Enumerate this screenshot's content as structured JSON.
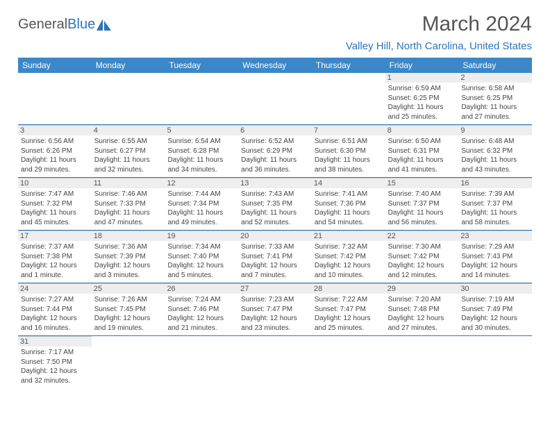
{
  "logo": {
    "part1": "General",
    "part2": "Blue"
  },
  "title": "March 2024",
  "location": "Valley Hill, North Carolina, United States",
  "colors": {
    "header_bg": "#3b87c8",
    "accent": "#2d74b8",
    "text": "#555555",
    "cell_border": "#cccccc",
    "daynum_bg": "#eeeeee"
  },
  "days_of_week": [
    "Sunday",
    "Monday",
    "Tuesday",
    "Wednesday",
    "Thursday",
    "Friday",
    "Saturday"
  ],
  "weeks": [
    [
      null,
      null,
      null,
      null,
      null,
      {
        "n": "1",
        "sr": "6:59 AM",
        "ss": "6:25 PM",
        "dl": "11 hours and 25 minutes."
      },
      {
        "n": "2",
        "sr": "6:58 AM",
        "ss": "6:25 PM",
        "dl": "11 hours and 27 minutes."
      }
    ],
    [
      {
        "n": "3",
        "sr": "6:56 AM",
        "ss": "6:26 PM",
        "dl": "11 hours and 29 minutes."
      },
      {
        "n": "4",
        "sr": "6:55 AM",
        "ss": "6:27 PM",
        "dl": "11 hours and 32 minutes."
      },
      {
        "n": "5",
        "sr": "6:54 AM",
        "ss": "6:28 PM",
        "dl": "11 hours and 34 minutes."
      },
      {
        "n": "6",
        "sr": "6:52 AM",
        "ss": "6:29 PM",
        "dl": "11 hours and 36 minutes."
      },
      {
        "n": "7",
        "sr": "6:51 AM",
        "ss": "6:30 PM",
        "dl": "11 hours and 38 minutes."
      },
      {
        "n": "8",
        "sr": "6:50 AM",
        "ss": "6:31 PM",
        "dl": "11 hours and 41 minutes."
      },
      {
        "n": "9",
        "sr": "6:48 AM",
        "ss": "6:32 PM",
        "dl": "11 hours and 43 minutes."
      }
    ],
    [
      {
        "n": "10",
        "sr": "7:47 AM",
        "ss": "7:32 PM",
        "dl": "11 hours and 45 minutes."
      },
      {
        "n": "11",
        "sr": "7:46 AM",
        "ss": "7:33 PM",
        "dl": "11 hours and 47 minutes."
      },
      {
        "n": "12",
        "sr": "7:44 AM",
        "ss": "7:34 PM",
        "dl": "11 hours and 49 minutes."
      },
      {
        "n": "13",
        "sr": "7:43 AM",
        "ss": "7:35 PM",
        "dl": "11 hours and 52 minutes."
      },
      {
        "n": "14",
        "sr": "7:41 AM",
        "ss": "7:36 PM",
        "dl": "11 hours and 54 minutes."
      },
      {
        "n": "15",
        "sr": "7:40 AM",
        "ss": "7:37 PM",
        "dl": "11 hours and 56 minutes."
      },
      {
        "n": "16",
        "sr": "7:39 AM",
        "ss": "7:37 PM",
        "dl": "11 hours and 58 minutes."
      }
    ],
    [
      {
        "n": "17",
        "sr": "7:37 AM",
        "ss": "7:38 PM",
        "dl": "12 hours and 1 minute."
      },
      {
        "n": "18",
        "sr": "7:36 AM",
        "ss": "7:39 PM",
        "dl": "12 hours and 3 minutes."
      },
      {
        "n": "19",
        "sr": "7:34 AM",
        "ss": "7:40 PM",
        "dl": "12 hours and 5 minutes."
      },
      {
        "n": "20",
        "sr": "7:33 AM",
        "ss": "7:41 PM",
        "dl": "12 hours and 7 minutes."
      },
      {
        "n": "21",
        "sr": "7:32 AM",
        "ss": "7:42 PM",
        "dl": "12 hours and 10 minutes."
      },
      {
        "n": "22",
        "sr": "7:30 AM",
        "ss": "7:42 PM",
        "dl": "12 hours and 12 minutes."
      },
      {
        "n": "23",
        "sr": "7:29 AM",
        "ss": "7:43 PM",
        "dl": "12 hours and 14 minutes."
      }
    ],
    [
      {
        "n": "24",
        "sr": "7:27 AM",
        "ss": "7:44 PM",
        "dl": "12 hours and 16 minutes."
      },
      {
        "n": "25",
        "sr": "7:26 AM",
        "ss": "7:45 PM",
        "dl": "12 hours and 19 minutes."
      },
      {
        "n": "26",
        "sr": "7:24 AM",
        "ss": "7:46 PM",
        "dl": "12 hours and 21 minutes."
      },
      {
        "n": "27",
        "sr": "7:23 AM",
        "ss": "7:47 PM",
        "dl": "12 hours and 23 minutes."
      },
      {
        "n": "28",
        "sr": "7:22 AM",
        "ss": "7:47 PM",
        "dl": "12 hours and 25 minutes."
      },
      {
        "n": "29",
        "sr": "7:20 AM",
        "ss": "7:48 PM",
        "dl": "12 hours and 27 minutes."
      },
      {
        "n": "30",
        "sr": "7:19 AM",
        "ss": "7:49 PM",
        "dl": "12 hours and 30 minutes."
      }
    ],
    [
      {
        "n": "31",
        "sr": "7:17 AM",
        "ss": "7:50 PM",
        "dl": "12 hours and 32 minutes."
      },
      null,
      null,
      null,
      null,
      null,
      null
    ]
  ],
  "labels": {
    "sunrise": "Sunrise:",
    "sunset": "Sunset:",
    "daylight": "Daylight:"
  }
}
